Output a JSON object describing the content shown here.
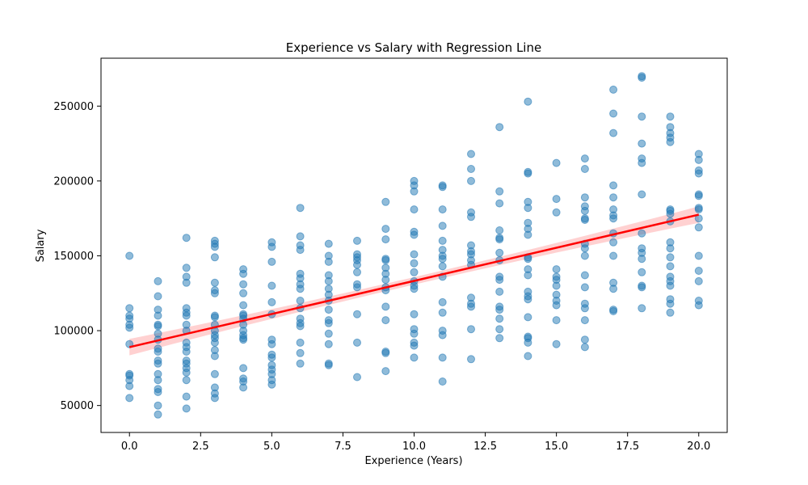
{
  "chart_data": {
    "type": "scatter",
    "title": "Experience vs Salary with Regression Line",
    "xlabel": "Experience (Years)",
    "ylabel": "Salary",
    "xlim": [
      -1,
      21
    ],
    "ylim": [
      32000,
      282000
    ],
    "xticks": [
      0,
      2.5,
      5,
      7.5,
      10,
      12.5,
      15,
      17.5,
      20
    ],
    "xtick_labels": [
      "0.0",
      "2.5",
      "5.0",
      "7.5",
      "10.0",
      "12.5",
      "15.0",
      "17.5",
      "20.0"
    ],
    "yticks": [
      50000,
      100000,
      150000,
      200000,
      250000
    ],
    "ytick_labels": [
      "50000",
      "100000",
      "150000",
      "200000",
      "250000"
    ],
    "grid": false,
    "colors": {
      "points": "#1f77b4",
      "line": "#ff0000",
      "band": "#ffb3b3"
    },
    "regression": {
      "x": [
        0,
        20
      ],
      "y": [
        89000,
        177500
      ],
      "ci_half_width_ends": 5500,
      "ci_half_width_mid": 2500
    },
    "points": [
      {
        "x": 0,
        "ys": [
          150000,
          115000,
          110000,
          108000,
          104000,
          102000,
          91000,
          71000,
          70000,
          67000,
          63000,
          55000
        ]
      },
      {
        "x": 1,
        "ys": [
          133000,
          123000,
          114000,
          110000,
          104000,
          103000,
          98000,
          94000,
          88000,
          86000,
          80000,
          78000,
          71000,
          67000,
          61000,
          59000,
          50000,
          44000
        ]
      },
      {
        "x": 2,
        "ys": [
          162000,
          142000,
          136000,
          132000,
          115000,
          112000,
          110000,
          104000,
          100000,
          92000,
          89000,
          86000,
          80000,
          78000,
          75000,
          72000,
          67000,
          56000,
          48000
        ]
      },
      {
        "x": 3,
        "ys": [
          160000,
          158000,
          156000,
          149000,
          132000,
          127000,
          125000,
          110000,
          109000,
          104000,
          100000,
          97000,
          95000,
          92000,
          87000,
          83000,
          71000,
          62000,
          58000,
          55000
        ]
      },
      {
        "x": 4,
        "ys": [
          141000,
          138000,
          131000,
          125000,
          117000,
          111000,
          110000,
          108000,
          104000,
          100000,
          97000,
          95000,
          94000,
          75000,
          68000,
          66000,
          62000
        ]
      },
      {
        "x": 5,
        "ys": [
          159000,
          156000,
          146000,
          130000,
          119000,
          111000,
          94000,
          91000,
          84000,
          82000,
          77000,
          74000,
          71000,
          67000,
          64000
        ]
      },
      {
        "x": 6,
        "ys": [
          182000,
          163000,
          157000,
          154000,
          138000,
          135000,
          131000,
          128000,
          120000,
          115000,
          108000,
          105000,
          103000,
          92000,
          85000,
          78000
        ]
      },
      {
        "x": 7,
        "ys": [
          158000,
          150000,
          146000,
          137000,
          133000,
          128000,
          124000,
          120000,
          114000,
          107000,
          105000,
          98000,
          91000,
          78000,
          77000
        ]
      },
      {
        "x": 8,
        "ys": [
          160000,
          151000,
          149000,
          147000,
          144000,
          139000,
          131000,
          129000,
          111000,
          92000,
          69000
        ]
      },
      {
        "x": 9,
        "ys": [
          186000,
          168000,
          161000,
          148000,
          147000,
          142000,
          138000,
          134000,
          129000,
          127000,
          116000,
          107000,
          86000,
          85000,
          73000
        ]
      },
      {
        "x": 10,
        "ys": [
          200000,
          197000,
          193000,
          181000,
          166000,
          164000,
          151000,
          145000,
          139000,
          133000,
          130000,
          128000,
          111000,
          101000,
          98000,
          92000,
          90000,
          82000
        ]
      },
      {
        "x": 11,
        "ys": [
          197000,
          196000,
          181000,
          170000,
          160000,
          154000,
          150000,
          148000,
          143000,
          136000,
          119000,
          112000,
          100000,
          97000,
          82000,
          66000
        ]
      },
      {
        "x": 12,
        "ys": [
          218000,
          208000,
          200000,
          179000,
          176000,
          157000,
          153000,
          151000,
          147000,
          144000,
          122000,
          118000,
          116000,
          101000,
          81000
        ]
      },
      {
        "x": 13,
        "ys": [
          236000,
          193000,
          185000,
          167000,
          162000,
          161000,
          152000,
          147000,
          136000,
          134000,
          126000,
          116000,
          114000,
          108000,
          101000,
          95000
        ]
      },
      {
        "x": 14,
        "ys": [
          253000,
          206000,
          205000,
          186000,
          182000,
          172000,
          168000,
          164000,
          149000,
          148000,
          141000,
          137000,
          126000,
          123000,
          121000,
          109000,
          96000,
          95000,
          92000,
          83000
        ]
      },
      {
        "x": 15,
        "ys": [
          212000,
          188000,
          179000,
          141000,
          136000,
          134000,
          130000,
          124000,
          120000,
          117000,
          107000,
          91000
        ]
      },
      {
        "x": 16,
        "ys": [
          215000,
          208000,
          189000,
          183000,
          180000,
          175000,
          174000,
          158000,
          155000,
          150000,
          137000,
          129000,
          118000,
          115000,
          107000,
          94000,
          89000
        ]
      },
      {
        "x": 17,
        "ys": [
          261000,
          245000,
          232000,
          197000,
          189000,
          181000,
          177000,
          175000,
          165000,
          159000,
          150000,
          132000,
          128000,
          114000,
          113000
        ]
      },
      {
        "x": 18,
        "ys": [
          270000,
          269000,
          243000,
          225000,
          215000,
          212000,
          191000,
          165000,
          155000,
          152000,
          148000,
          139000,
          130000,
          129000,
          115000
        ]
      },
      {
        "x": 19,
        "ys": [
          243000,
          236000,
          232000,
          229000,
          226000,
          181000,
          180000,
          178000,
          173000,
          159000,
          155000,
          149000,
          143000,
          136000,
          133000,
          130000,
          121000,
          118000,
          112000
        ]
      },
      {
        "x": 20,
        "ys": [
          218000,
          214000,
          207000,
          205000,
          191000,
          190000,
          182000,
          181000,
          175000,
          169000,
          150000,
          140000,
          133000,
          120000,
          117000
        ]
      }
    ]
  }
}
